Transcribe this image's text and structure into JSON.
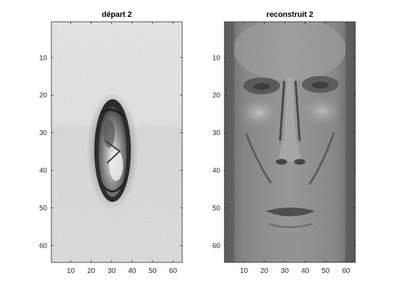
{
  "figure": {
    "background": "#ffffff"
  },
  "panels": [
    {
      "title": "départ 2",
      "image_type": "grayscale bitmap",
      "image_content": "light gray background with a dark oval-shaped object",
      "colormap": "gray",
      "xticks": [
        "10",
        "20",
        "30",
        "40",
        "50",
        "60"
      ],
      "yticks": [
        "10",
        "20",
        "30",
        "40",
        "50",
        "60"
      ],
      "xlim": [
        0.5,
        64.5
      ],
      "ylim": [
        0.5,
        64.5
      ]
    },
    {
      "title": "reconstruit 2",
      "image_type": "grayscale bitmap",
      "image_content": "gray reconstructed face",
      "colormap": "gray",
      "xticks": [
        "10",
        "20",
        "30",
        "40",
        "50",
        "60"
      ],
      "yticks": [
        "10",
        "20",
        "30",
        "40",
        "50",
        "60"
      ],
      "xlim": [
        0.5,
        64.5
      ],
      "ylim": [
        0.5,
        64.5
      ]
    }
  ]
}
